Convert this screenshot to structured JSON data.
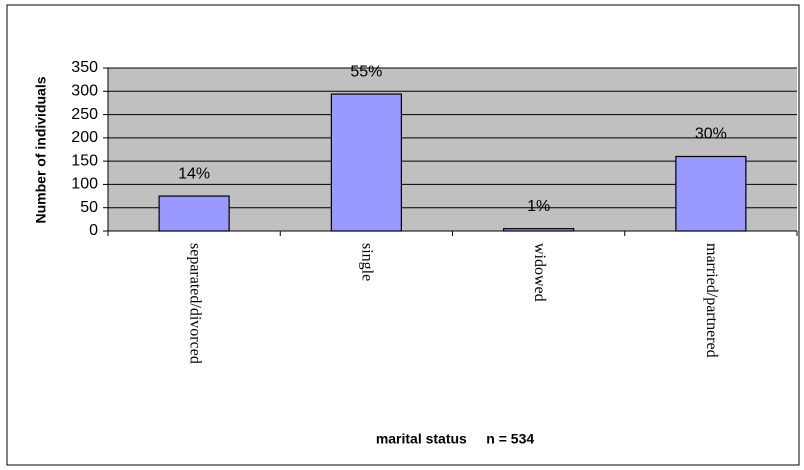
{
  "chart_data": {
    "type": "bar",
    "y_label": "Number of individuals",
    "x_label": "marital status     n = 534",
    "categories": [
      "separated/divorced",
      "single",
      "widowed",
      "married/partnered"
    ],
    "values": [
      75,
      294,
      5,
      160
    ],
    "value_labels": [
      "14%",
      "55%",
      "1%",
      "30%"
    ],
    "color": "#9999ff",
    "ylim": [
      0,
      350
    ],
    "yticks": [
      0,
      50,
      100,
      150,
      200,
      250,
      300,
      350
    ],
    "grid": true
  }
}
